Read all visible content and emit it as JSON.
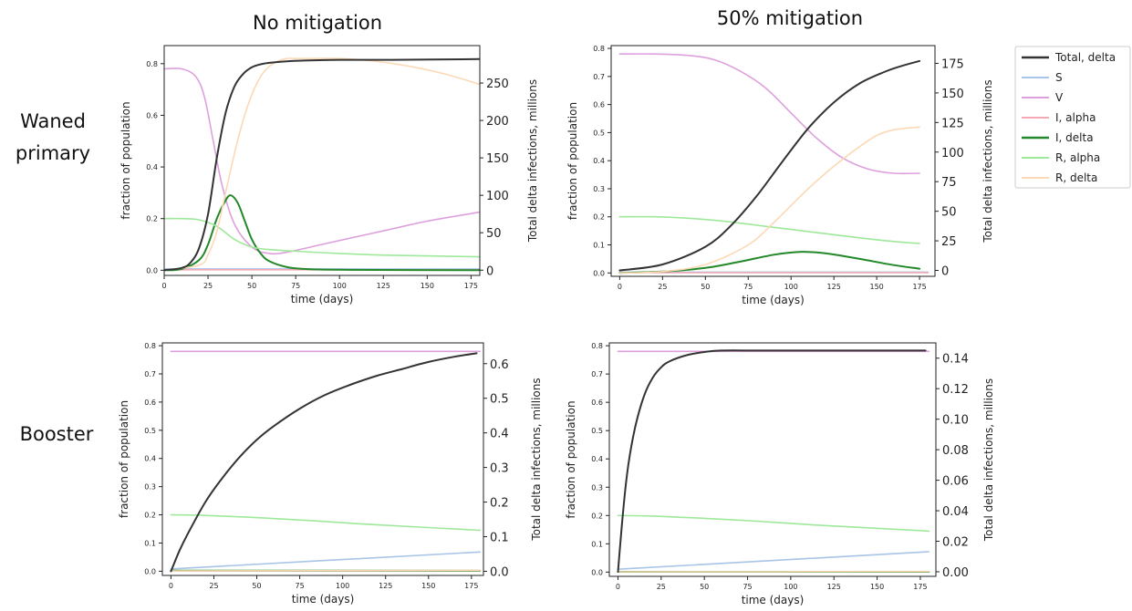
{
  "column_titles": [
    "No mitigation",
    "50% mitigation"
  ],
  "row_titles": [
    [
      "Waned",
      "primary"
    ],
    [
      "Booster"
    ]
  ],
  "legend": [
    {
      "name": "Total, delta",
      "color": "#333333"
    },
    {
      "name": "S",
      "color": "#a8c4e6"
    },
    {
      "name": "V",
      "color": "#dda0dd"
    },
    {
      "name": "I, alpha",
      "color": "#f4a7b4"
    },
    {
      "name": "I, delta",
      "color": "#22882a"
    },
    {
      "name": "R, alpha",
      "color": "#9ee89a"
    },
    {
      "name": "R, delta",
      "color": "#fcd9b5"
    }
  ],
  "chart_data": [
    {
      "type": "line",
      "title": "",
      "xlabel": "time (days)",
      "ylabel": "fraction of population",
      "y2label": "Total delta infections, millions",
      "xlim": [
        0,
        180
      ],
      "ylim": [
        -0.02,
        0.87
      ],
      "y2lim": [
        -7,
        300
      ],
      "xticks": [
        0,
        25,
        50,
        75,
        100,
        125,
        150,
        175
      ],
      "yticks": [
        "0.0",
        "0.2",
        "0.4",
        "0.6",
        "0.8"
      ],
      "y2ticks": [
        "0",
        "50",
        "100",
        "150",
        "200",
        "250"
      ],
      "series": [
        {
          "name": "S",
          "axis": "left",
          "x": [
            0,
            180
          ],
          "y": [
            0.005,
            0.005
          ]
        },
        {
          "name": "V",
          "axis": "left",
          "x": [
            0,
            10,
            18,
            23,
            28,
            33,
            40,
            50,
            60,
            70,
            90,
            110,
            130,
            150,
            180
          ],
          "y": [
            0.78,
            0.78,
            0.75,
            0.67,
            0.5,
            0.33,
            0.18,
            0.09,
            0.065,
            0.07,
            0.1,
            0.13,
            0.16,
            0.19,
            0.225
          ]
        },
        {
          "name": "I, alpha",
          "axis": "left",
          "x": [
            0,
            180
          ],
          "y": [
            0.002,
            0.002
          ]
        },
        {
          "name": "I, delta",
          "axis": "left",
          "x": [
            0,
            10,
            20,
            25,
            30,
            35,
            38,
            42,
            46,
            50,
            55,
            60,
            70,
            80,
            100,
            180
          ],
          "y": [
            0.0,
            0.005,
            0.04,
            0.1,
            0.2,
            0.27,
            0.29,
            0.26,
            0.19,
            0.12,
            0.065,
            0.035,
            0.012,
            0.005,
            0.002,
            0.0
          ]
        },
        {
          "name": "R, alpha",
          "axis": "left",
          "x": [
            0,
            10,
            20,
            30,
            40,
            50,
            60,
            80,
            100,
            130,
            180
          ],
          "y": [
            0.2,
            0.2,
            0.195,
            0.17,
            0.12,
            0.09,
            0.08,
            0.072,
            0.065,
            0.058,
            0.052
          ]
        },
        {
          "name": "R, delta",
          "axis": "left",
          "x": [
            0,
            20,
            25,
            30,
            35,
            40,
            45,
            50,
            55,
            60,
            65,
            70,
            75,
            85,
            100,
            120,
            140,
            160,
            180
          ],
          "y": [
            0.0,
            0.02,
            0.06,
            0.15,
            0.3,
            0.45,
            0.58,
            0.68,
            0.75,
            0.79,
            0.81,
            0.82,
            0.82,
            0.82,
            0.82,
            0.81,
            0.79,
            0.76,
            0.72
          ]
        },
        {
          "name": "Total, delta",
          "axis": "right",
          "x": [
            0,
            10,
            15,
            20,
            25,
            30,
            35,
            40,
            45,
            50,
            55,
            60,
            70,
            80,
            100,
            130,
            180
          ],
          "y": [
            0,
            3,
            10,
            30,
            75,
            150,
            210,
            245,
            262,
            271,
            275,
            277,
            279,
            280,
            281,
            281,
            282
          ]
        }
      ]
    },
    {
      "type": "line",
      "title": "",
      "xlabel": "time (days)",
      "ylabel": "fraction of population",
      "y2label": "Total delta infections, millions",
      "xlim": [
        -5,
        184
      ],
      "ylim": [
        -0.012,
        0.81
      ],
      "y2lim": [
        -5,
        190
      ],
      "xticks": [
        0,
        25,
        50,
        75,
        100,
        125,
        150,
        175
      ],
      "yticks": [
        "0.0",
        "0.1",
        "0.2",
        "0.3",
        "0.4",
        "0.5",
        "0.6",
        "0.7",
        "0.8"
      ],
      "y2ticks": [
        "0",
        "25",
        "50",
        "75",
        "100",
        "125",
        "150",
        "175"
      ],
      "series": [
        {
          "name": "S",
          "axis": "left",
          "x": [
            0,
            180
          ],
          "y": [
            0.003,
            0.003
          ]
        },
        {
          "name": "V",
          "axis": "left",
          "x": [
            0,
            20,
            40,
            55,
            70,
            85,
            100,
            115,
            130,
            145,
            160,
            175
          ],
          "y": [
            0.78,
            0.78,
            0.775,
            0.76,
            0.72,
            0.66,
            0.57,
            0.48,
            0.41,
            0.37,
            0.355,
            0.355
          ]
        },
        {
          "name": "I, alpha",
          "axis": "left",
          "x": [
            0,
            180
          ],
          "y": [
            0.001,
            0.001
          ]
        },
        {
          "name": "I, delta",
          "axis": "left",
          "x": [
            0,
            25,
            50,
            70,
            90,
            105,
            120,
            140,
            160,
            175
          ],
          "y": [
            0.0,
            0.005,
            0.018,
            0.04,
            0.065,
            0.075,
            0.07,
            0.05,
            0.028,
            0.015
          ]
        },
        {
          "name": "R, alpha",
          "axis": "left",
          "x": [
            0,
            20,
            40,
            60,
            80,
            100,
            120,
            140,
            160,
            175
          ],
          "y": [
            0.2,
            0.2,
            0.195,
            0.185,
            0.17,
            0.155,
            0.14,
            0.125,
            0.112,
            0.105
          ]
        },
        {
          "name": "R, delta",
          "axis": "left",
          "x": [
            0,
            25,
            50,
            75,
            90,
            100,
            110,
            125,
            140,
            150,
            160,
            175
          ],
          "y": [
            0.0,
            0.005,
            0.03,
            0.1,
            0.18,
            0.24,
            0.3,
            0.38,
            0.45,
            0.49,
            0.51,
            0.52
          ]
        },
        {
          "name": "Total, delta",
          "axis": "right",
          "x": [
            0,
            25,
            50,
            65,
            80,
            95,
            110,
            125,
            140,
            155,
            165,
            175
          ],
          "y": [
            0,
            5,
            20,
            38,
            63,
            92,
            120,
            142,
            158,
            168,
            173,
            177
          ]
        }
      ]
    },
    {
      "type": "line",
      "title": "",
      "xlabel": "time (days)",
      "ylabel": "fraction of population",
      "y2label": "Total delta infections, millions",
      "xlim": [
        -5,
        182
      ],
      "ylim": [
        -0.015,
        0.81
      ],
      "y2lim": [
        -0.012,
        0.66
      ],
      "xticks": [
        0,
        25,
        50,
        75,
        100,
        125,
        150,
        175
      ],
      "yticks": [
        "0.0",
        "0.1",
        "0.2",
        "0.3",
        "0.4",
        "0.5",
        "0.6",
        "0.7",
        "0.8"
      ],
      "y2ticks": [
        "0.0",
        "0.1",
        "0.2",
        "0.3",
        "0.4",
        "0.5",
        "0.6"
      ],
      "series": [
        {
          "name": "S",
          "axis": "left",
          "x": [
            0,
            180
          ],
          "y": [
            0.008,
            0.068
          ]
        },
        {
          "name": "V",
          "axis": "left",
          "x": [
            0,
            180
          ],
          "y": [
            0.78,
            0.78
          ]
        },
        {
          "name": "I, alpha",
          "axis": "left",
          "x": [
            0,
            180
          ],
          "y": [
            0.001,
            0.001
          ]
        },
        {
          "name": "I, delta",
          "axis": "left",
          "x": [
            0,
            180
          ],
          "y": [
            0.002,
            0.002
          ]
        },
        {
          "name": "R, alpha",
          "axis": "left",
          "x": [
            0,
            20,
            50,
            80,
            110,
            140,
            180
          ],
          "y": [
            0.2,
            0.198,
            0.19,
            0.18,
            0.168,
            0.158,
            0.145
          ]
        },
        {
          "name": "R, delta",
          "axis": "left",
          "x": [
            0,
            180
          ],
          "y": [
            0.001,
            0.003
          ]
        },
        {
          "name": "Total, delta",
          "axis": "right",
          "x": [
            0,
            5,
            10,
            20,
            30,
            40,
            50,
            60,
            75,
            90,
            105,
            120,
            135,
            150,
            165,
            178
          ],
          "y": [
            0,
            0.06,
            0.11,
            0.2,
            0.27,
            0.33,
            0.38,
            0.42,
            0.47,
            0.51,
            0.54,
            0.565,
            0.585,
            0.605,
            0.62,
            0.63
          ]
        }
      ]
    },
    {
      "type": "line",
      "title": "",
      "xlabel": "time (days)",
      "ylabel": "fraction of population",
      "y2label": "Total delta infections, millions",
      "xlim": [
        -5,
        184
      ],
      "ylim": [
        -0.015,
        0.81
      ],
      "y2lim": [
        -0.003,
        0.15
      ],
      "xticks": [
        0,
        25,
        50,
        75,
        100,
        125,
        150,
        175
      ],
      "yticks": [
        "0.0",
        "0.1",
        "0.2",
        "0.3",
        "0.4",
        "0.5",
        "0.6",
        "0.7",
        "0.8"
      ],
      "y2ticks": [
        "0.00",
        "0.02",
        "0.04",
        "0.06",
        "0.08",
        "0.10",
        "0.12",
        "0.14"
      ],
      "series": [
        {
          "name": "S",
          "axis": "left",
          "x": [
            0,
            180
          ],
          "y": [
            0.01,
            0.072
          ]
        },
        {
          "name": "V",
          "axis": "left",
          "x": [
            0,
            180
          ],
          "y": [
            0.78,
            0.78
          ]
        },
        {
          "name": "I, alpha",
          "axis": "left",
          "x": [
            0,
            180
          ],
          "y": [
            0.001,
            0.001
          ]
        },
        {
          "name": "I, delta",
          "axis": "left",
          "x": [
            0,
            180
          ],
          "y": [
            0.001,
            0.001
          ]
        },
        {
          "name": "R, alpha",
          "axis": "left",
          "x": [
            0,
            20,
            50,
            80,
            110,
            140,
            180
          ],
          "y": [
            0.2,
            0.198,
            0.19,
            0.18,
            0.168,
            0.158,
            0.145
          ]
        },
        {
          "name": "R, delta",
          "axis": "left",
          "x": [
            0,
            180
          ],
          "y": [
            0.001,
            0.002
          ]
        },
        {
          "name": "Total, delta",
          "axis": "right",
          "x": [
            0,
            3,
            6,
            10,
            15,
            20,
            25,
            30,
            40,
            50,
            60,
            80,
            100,
            140,
            178
          ],
          "y": [
            0,
            0.04,
            0.07,
            0.095,
            0.115,
            0.127,
            0.134,
            0.138,
            0.142,
            0.144,
            0.145,
            0.145,
            0.145,
            0.145,
            0.145
          ]
        }
      ]
    }
  ]
}
